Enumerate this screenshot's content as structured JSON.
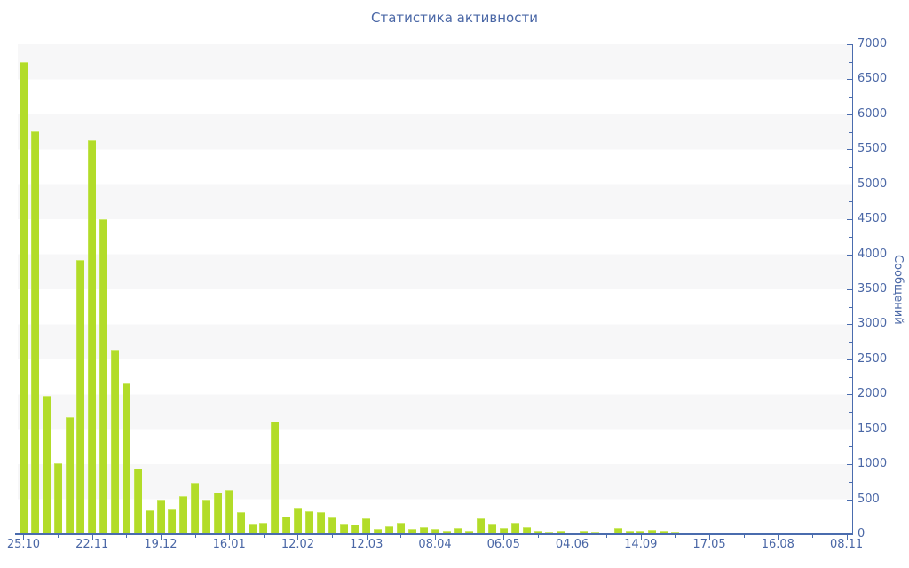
{
  "chart_data": {
    "type": "bar",
    "title": "Статистика активности",
    "xlabel": "",
    "ylabel": "Сообщений",
    "ylim": [
      0,
      7000
    ],
    "y_major_step": 500,
    "y_minor_step": 250,
    "y_tick_labels": [
      "0",
      "500",
      "1000",
      "1500",
      "2000",
      "2500",
      "3000",
      "3500",
      "4000",
      "4500",
      "5000",
      "5500",
      "6000",
      "6500",
      "7000"
    ],
    "grid": "horizontal striped bands every 500 units",
    "legend_position": "none",
    "bar_color": "#b2dc29",
    "axis_color": "#4a6cae",
    "label_color": "#4a67a6",
    "stripe_color": "#f7f7f8",
    "x_labels": [
      "25.10",
      "22.11",
      "19.12",
      "16.01",
      "12.02",
      "12.03",
      "08.04",
      "06.05",
      "04.06",
      "14.09",
      "17.05",
      "16.08",
      "08.11"
    ],
    "x_label_every_bars": 6,
    "x_minor_tick_every_bars": 3,
    "values": [
      6750,
      5760,
      1980,
      1020,
      1670,
      3920,
      5630,
      4500,
      2640,
      2150,
      940,
      340,
      500,
      360,
      545,
      740,
      500,
      590,
      640,
      320,
      150,
      170,
      1610,
      260,
      380,
      335,
      320,
      235,
      150,
      140,
      230,
      80,
      120,
      165,
      70,
      105,
      80,
      55,
      85,
      55,
      230,
      150,
      90,
      160,
      100,
      45,
      35,
      45,
      30,
      50,
      35,
      25,
      95,
      55,
      45,
      65,
      45,
      35,
      30,
      30,
      25,
      20,
      20,
      20,
      20,
      15,
      15,
      15,
      15,
      15,
      15,
      15,
      15
    ]
  }
}
